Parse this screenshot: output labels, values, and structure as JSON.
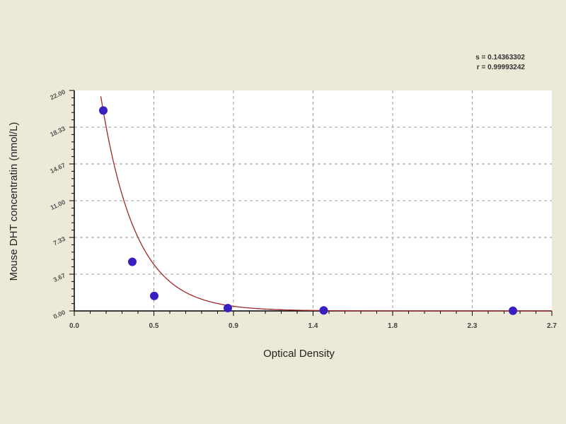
{
  "stats": {
    "s": "s = 0.14363302",
    "r": "r = 0.99993242"
  },
  "chart_data": {
    "type": "scatter",
    "title": "",
    "xlabel": "Optical Density",
    "ylabel": "Mouse DHT concentratin (nmol/L)",
    "xlim": [
      0,
      2.7
    ],
    "ylim": [
      0,
      22
    ],
    "x_ticks": [
      0,
      0.45,
      0.9,
      1.35,
      1.8,
      2.25,
      2.7
    ],
    "x_tick_labels": [
      "0.0",
      "0.5",
      "0.9",
      "1.4",
      "1.8",
      "2.3",
      "2.7"
    ],
    "y_ticks": [
      0,
      3.67,
      7.33,
      11,
      14.67,
      18.33,
      22
    ],
    "y_tick_labels": [
      "0.00",
      "3.67",
      "7.33",
      "11.00",
      "14.67",
      "18.33",
      "22.00"
    ],
    "grid": true,
    "points": [
      {
        "x": 0.164,
        "y": 20.0
      },
      {
        "x": 0.328,
        "y": 4.9
      },
      {
        "x": 0.452,
        "y": 1.5
      },
      {
        "x": 0.868,
        "y": 0.28
      },
      {
        "x": 1.41,
        "y": 0.05
      },
      {
        "x": 2.48,
        "y": 0.02
      }
    ],
    "colors": {
      "points": "#3a1fc0",
      "curve": "#a02828",
      "plot_bg": "#ffffff",
      "page_bg": "#ece9d8"
    }
  }
}
